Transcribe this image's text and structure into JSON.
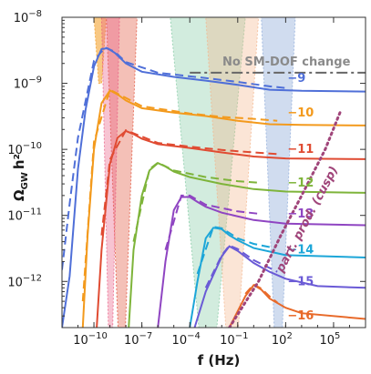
{
  "chart_data": {
    "type": "line",
    "x_scale": "log",
    "y_scale": "log",
    "xlabel": "f (Hz)",
    "ylabel_main": "Ω",
    "ylabel_sub": "GW",
    "ylabel_tail": "h²",
    "xlim": [
      1e-12,
      10000000.0
    ],
    "ylim": [
      2e-13,
      1e-08
    ],
    "x_ticks": [
      {
        "value": 1e-10,
        "label_base": "10",
        "label_exp": "−10"
      },
      {
        "value": 1e-07,
        "label_base": "10",
        "label_exp": "−7"
      },
      {
        "value": 0.0001,
        "label_base": "10",
        "label_exp": "−4"
      },
      {
        "value": 0.1,
        "label_base": "10",
        "label_exp": "−1"
      },
      {
        "value": 100.0,
        "label_base": "10",
        "label_exp": "2"
      },
      {
        "value": 100000.0,
        "label_base": "10",
        "label_exp": "5"
      }
    ],
    "y_ticks": [
      {
        "value": 1e-12,
        "label_base": "10",
        "label_exp": "−12"
      },
      {
        "value": 1e-11,
        "label_base": "10",
        "label_exp": "−11"
      },
      {
        "value": 1e-10,
        "label_base": "10",
        "label_exp": "−10"
      },
      {
        "value": 1e-09,
        "label_base": "10",
        "label_exp": "−9"
      },
      {
        "value": 1e-08,
        "label_base": "10",
        "label_exp": "−8"
      }
    ],
    "reference_line": {
      "label": "No SM-DOF change",
      "y": 1.45e-09,
      "x_from": 0.0001,
      "x_to": 10000000.0,
      "color": "#666666"
    },
    "cusp_line": {
      "label": "part. prod. (cusp)",
      "color": "#a0457a",
      "points": [
        [
          0.03,
          2e-13
        ],
        [
          2.0,
          1e-12
        ],
        [
          50,
          5e-12
        ],
        [
          1000,
          2e-11
        ],
        [
          30000,
          1e-10
        ],
        [
          300000,
          4e-10
        ]
      ]
    },
    "series": [
      {
        "name": "−9",
        "color": "#4f6fd8",
        "label_x": 100,
        "label_y": 1.2e-09,
        "points": [
          [
            1e-12,
            2e-13
          ],
          [
            3e-12,
            1.2e-12
          ],
          [
            1e-11,
            5e-11
          ],
          [
            3e-11,
            4e-10
          ],
          [
            1e-10,
            1.8e-09
          ],
          [
            3e-10,
            3.3e-09
          ],
          [
            7e-10,
            3.4e-09
          ],
          [
            2e-09,
            2.9e-09
          ],
          [
            1e-08,
            2e-09
          ],
          [
            1e-07,
            1.5e-09
          ],
          [
            1e-05,
            1.25e-09
          ],
          [
            0.001,
            1.1e-09
          ],
          [
            0.1,
            9.5e-10
          ],
          [
            10,
            8e-10
          ],
          [
            1000.0,
            7.7e-10
          ],
          [
            10000000.0,
            7.5e-10
          ]
        ],
        "dashed": [
          [
            1e-12,
            1.5e-12
          ],
          [
            3e-12,
            1.5e-11
          ],
          [
            1e-11,
            1.5e-10
          ],
          [
            1e-10,
            2.2e-09
          ],
          [
            5e-10,
            3.5e-09
          ],
          [
            2e-09,
            3e-09
          ],
          [
            1e-08,
            2.1e-09
          ],
          [
            1e-06,
            1.45e-09
          ],
          [
            0.001,
            1.2e-09
          ],
          [
            0.1,
            1.05e-09
          ],
          [
            10,
            9e-10
          ],
          [
            100,
            8.5e-10
          ]
        ]
      },
      {
        "name": "−10",
        "color": "#f39a1d",
        "label_x": 100,
        "label_y": 3.6e-10,
        "points": [
          [
            2e-11,
            2e-13
          ],
          [
            4e-11,
            5e-12
          ],
          [
            1e-10,
            1e-10
          ],
          [
            3e-10,
            5e-10
          ],
          [
            1e-09,
            7.8e-10
          ],
          [
            3e-09,
            6.8e-10
          ],
          [
            1e-08,
            5.5e-10
          ],
          [
            1e-07,
            4.2e-10
          ],
          [
            1e-05,
            3.6e-10
          ],
          [
            0.001,
            3.2e-10
          ],
          [
            0.1,
            2.7e-10
          ],
          [
            10,
            2.4e-10
          ],
          [
            1000.0,
            2.35e-10
          ],
          [
            10000000.0,
            2.3e-10
          ]
        ],
        "dashed": [
          [
            2e-11,
            5e-13
          ],
          [
            1e-10,
            1.3e-10
          ],
          [
            1e-09,
            8e-10
          ],
          [
            1e-07,
            4.5e-10
          ],
          [
            0.0001,
            3.5e-10
          ],
          [
            0.01,
            3.1e-10
          ],
          [
            1,
            2.9e-10
          ],
          [
            30,
            2.7e-10
          ]
        ]
      },
      {
        "name": "−11",
        "color": "#e04b32",
        "label_x": 100,
        "label_y": 1e-10,
        "points": [
          [
            1.5e-10,
            2e-13
          ],
          [
            3e-10,
            3e-12
          ],
          [
            1e-09,
            6e-11
          ],
          [
            3e-09,
            1.5e-10
          ],
          [
            1e-08,
            1.9e-10
          ],
          [
            3e-08,
            1.7e-10
          ],
          [
            1e-07,
            1.45e-10
          ],
          [
            1e-06,
            1.2e-10
          ],
          [
            0.0001,
            1.05e-10
          ],
          [
            0.01,
            9e-11
          ],
          [
            1,
            7.8e-11
          ],
          [
            100,
            7.3e-11
          ],
          [
            10000000.0,
            7.1e-11
          ]
        ],
        "dashed": [
          [
            3e-10,
            5e-12
          ],
          [
            1e-09,
            7e-11
          ],
          [
            1e-08,
            1.95e-10
          ],
          [
            1e-06,
            1.25e-10
          ],
          [
            0.0001,
            1.1e-10
          ],
          [
            0.01,
            9.8e-11
          ],
          [
            1,
            9e-11
          ],
          [
            30,
            8.5e-11
          ]
        ]
      },
      {
        "name": "−12",
        "color": "#7eb43a",
        "label_x": 100,
        "label_y": 3.1e-11,
        "points": [
          [
            1.5e-08,
            2e-13
          ],
          [
            3e-08,
            3e-12
          ],
          [
            1e-07,
            2e-11
          ],
          [
            3e-07,
            4.8e-11
          ],
          [
            1e-06,
            6.2e-11
          ],
          [
            3e-06,
            5.5e-11
          ],
          [
            1e-05,
            4.6e-11
          ],
          [
            0.0001,
            3.8e-11
          ],
          [
            0.01,
            3e-11
          ],
          [
            1,
            2.5e-11
          ],
          [
            100,
            2.3e-11
          ],
          [
            10000000.0,
            2.2e-11
          ]
        ],
        "dashed": [
          [
            3e-08,
            4e-12
          ],
          [
            3e-07,
            5e-11
          ],
          [
            1e-06,
            6.3e-11
          ],
          [
            1e-05,
            4.8e-11
          ],
          [
            0.001,
            3.8e-11
          ],
          [
            0.1,
            3.3e-11
          ],
          [
            3,
            3.1e-11
          ]
        ]
      },
      {
        "name": "−13",
        "color": "#8f45c2",
        "label_x": 100,
        "label_y": 1.05e-11,
        "points": [
          [
            1e-06,
            2e-13
          ],
          [
            3e-06,
            2e-12
          ],
          [
            1e-05,
            1.2e-11
          ],
          [
            3e-05,
            1.9e-11
          ],
          [
            0.0001,
            1.9e-11
          ],
          [
            0.0003,
            1.6e-11
          ],
          [
            0.001,
            1.35e-11
          ],
          [
            0.01,
            1.1e-11
          ],
          [
            1,
            8.5e-12
          ],
          [
            100,
            7.5e-12
          ],
          [
            10000000.0,
            7.1e-12
          ]
        ],
        "dashed": [
          [
            3e-06,
            3e-12
          ],
          [
            3e-05,
            2e-11
          ],
          [
            0.0001,
            2e-11
          ],
          [
            0.001,
            1.45e-11
          ],
          [
            0.1,
            1.15e-11
          ],
          [
            3,
            1.05e-11
          ]
        ]
      },
      {
        "name": "−14",
        "color": "#1ca6d8",
        "label_x": 100,
        "label_y": 3e-12,
        "points": [
          [
            0.0001,
            2e-13
          ],
          [
            0.0003,
            1e-12
          ],
          [
            0.001,
            4.5e-12
          ],
          [
            0.003,
            6.5e-12
          ],
          [
            0.01,
            6.2e-12
          ],
          [
            0.03,
            5e-12
          ],
          [
            0.1,
            4.2e-12
          ],
          [
            1,
            3.2e-12
          ],
          [
            100,
            2.5e-12
          ],
          [
            10000000.0,
            2.3e-12
          ]
        ],
        "dashed": [
          [
            0.0003,
            1.3e-12
          ],
          [
            0.003,
            6.7e-12
          ],
          [
            0.01,
            6.4e-12
          ],
          [
            0.1,
            4.5e-12
          ],
          [
            1,
            3.7e-12
          ],
          [
            20,
            3.2e-12
          ]
        ]
      },
      {
        "name": "−15",
        "color": "#6a5ad6",
        "label_x": 100,
        "label_y": 1e-12,
        "points": [
          [
            0.0002,
            2e-13
          ],
          [
            0.001,
            7e-13
          ],
          [
            0.01,
            2.4e-12
          ],
          [
            0.03,
            3.4e-12
          ],
          [
            0.1,
            2.9e-12
          ],
          [
            1,
            1.9e-12
          ],
          [
            10,
            1.4e-12
          ],
          [
            100,
            1.1e-12
          ],
          [
            10000.0,
            8.5e-13
          ],
          [
            10000000.0,
            8e-13
          ]
        ],
        "dashed": [
          [
            0.001,
            8e-13
          ],
          [
            0.01,
            2.5e-12
          ],
          [
            0.03,
            3.5e-12
          ],
          [
            0.1,
            3.1e-12
          ],
          [
            1,
            2.1e-12
          ],
          [
            10,
            1.6e-12
          ],
          [
            30,
            1.4e-12
          ]
        ]
      },
      {
        "name": "−16",
        "color": "#e86a2a",
        "label_x": 100,
        "label_y": 3e-13,
        "points": [
          [
            0.03,
            2e-13
          ],
          [
            0.3,
            6e-13
          ],
          [
            1,
            8.8e-13
          ],
          [
            3,
            7.5e-13
          ],
          [
            10,
            5.5e-13
          ],
          [
            100,
            4e-13
          ],
          [
            1000.0,
            3.3e-13
          ],
          [
            10000000.0,
            2.7e-13
          ]
        ],
        "dashed": [
          [
            0.3,
            6.5e-13
          ],
          [
            1,
            9e-13
          ],
          [
            3,
            7.8e-13
          ],
          [
            10,
            5.9e-13
          ],
          [
            30,
            4.8e-13
          ]
        ]
      }
    ],
    "bands": [
      {
        "name": "pta-orange",
        "color": "#f39a1d",
        "opacity": 0.55,
        "x_from": 1e-10,
        "x_to": 6e-10,
        "y_top": 1e-08,
        "y_bottom": 1e-09
      },
      {
        "name": "pta-red",
        "color": "#e04b32",
        "opacity": 0.35,
        "x_from": 6e-10,
        "x_to": 5e-08,
        "y_top": 1e-08,
        "y_bottom": 2e-13
      },
      {
        "name": "pta-pink",
        "color": "#e8577f",
        "opacity": 0.35,
        "x_from": 3e-10,
        "x_to": 4e-09,
        "y_top": 1e-08,
        "y_bottom": 2e-13
      },
      {
        "name": "lisa-green",
        "color": "#7fc8a0",
        "opacity": 0.35,
        "x_from": 6e-06,
        "x_to": 0.3,
        "y_top": 1e-08,
        "y_bottom": 2e-13
      },
      {
        "name": "decigo-peach",
        "color": "#f4b48a",
        "opacity": 0.35,
        "x_from": 0.001,
        "x_to": 2,
        "y_top": 1e-08,
        "y_bottom": 2e-13
      },
      {
        "name": "et-blue",
        "color": "#8aa8d8",
        "opacity": 0.4,
        "x_from": 3,
        "x_to": 400,
        "y_top": 1e-08,
        "y_bottom": 2e-13
      }
    ]
  }
}
